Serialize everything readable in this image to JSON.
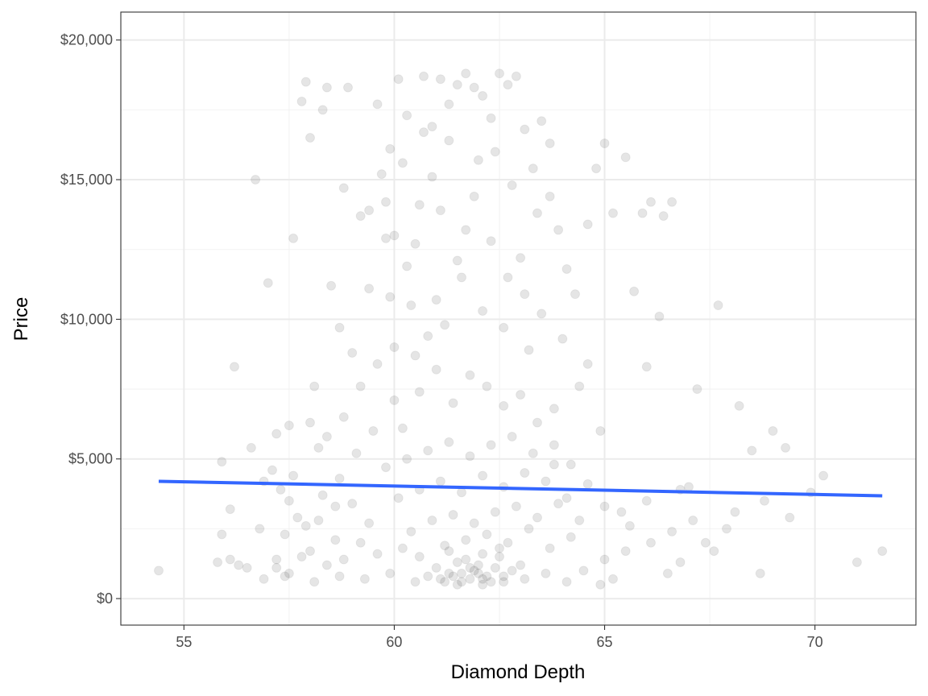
{
  "chart_data": {
    "type": "scatter",
    "title": "",
    "xlabel": "Diamond Depth",
    "ylabel": "Price",
    "xlim": [
      53.5,
      72.4
    ],
    "ylim": [
      -950,
      21000
    ],
    "x_ticks": [
      55,
      60,
      65,
      70
    ],
    "x_tick_labels": [
      "55",
      "60",
      "65",
      "70"
    ],
    "x_minor_ticks": [
      57.5,
      62.5,
      67.5
    ],
    "y_ticks": [
      0,
      5000,
      10000,
      15000,
      20000
    ],
    "y_tick_labels": [
      "$0",
      "$5,000",
      "$10,000",
      "$15,000",
      "$20,000"
    ],
    "y_minor_ticks": [
      2500,
      7500,
      12500,
      17500
    ],
    "grid": true,
    "point_color": "#000000",
    "point_alpha": 0.1,
    "points": [
      [
        54.4,
        1000
      ],
      [
        55.9,
        4900
      ],
      [
        55.9,
        2300
      ],
      [
        56.2,
        8300
      ],
      [
        56.1,
        3200
      ],
      [
        55.8,
        1300
      ],
      [
        56.1,
        1400
      ],
      [
        56.3,
        1200
      ],
      [
        56.5,
        1100
      ],
      [
        56.7,
        15000
      ],
      [
        56.6,
        5400
      ],
      [
        56.8,
        2500
      ],
      [
        56.9,
        4200
      ],
      [
        57.0,
        11300
      ],
      [
        57.1,
        4600
      ],
      [
        57.2,
        5900
      ],
      [
        57.2,
        1400
      ],
      [
        57.3,
        3900
      ],
      [
        57.4,
        800
      ],
      [
        57.5,
        6200
      ],
      [
        57.6,
        12900
      ],
      [
        57.7,
        2900
      ],
      [
        57.8,
        17800
      ],
      [
        57.9,
        18500
      ],
      [
        58.0,
        16500
      ],
      [
        58.1,
        7600
      ],
      [
        58.2,
        5400
      ],
      [
        58.3,
        17500
      ],
      [
        58.4,
        18300
      ],
      [
        58.5,
        11200
      ],
      [
        58.6,
        3300
      ],
      [
        58.7,
        9700
      ],
      [
        58.8,
        14700
      ],
      [
        58.9,
        18300
      ],
      [
        59.0,
        8800
      ],
      [
        59.2,
        13700
      ],
      [
        59.4,
        11100
      ],
      [
        59.6,
        17700
      ],
      [
        59.7,
        15200
      ],
      [
        59.8,
        14200
      ],
      [
        59.9,
        16100
      ],
      [
        60.0,
        13000
      ],
      [
        60.1,
        18600
      ],
      [
        60.3,
        17300
      ],
      [
        60.5,
        12700
      ],
      [
        60.7,
        18700
      ],
      [
        60.9,
        16900
      ],
      [
        61.1,
        18600
      ],
      [
        61.3,
        17700
      ],
      [
        61.5,
        18400
      ],
      [
        61.7,
        18800
      ],
      [
        61.9,
        18300
      ],
      [
        62.1,
        18000
      ],
      [
        62.3,
        17200
      ],
      [
        62.5,
        18800
      ],
      [
        62.7,
        18400
      ],
      [
        62.9,
        18700
      ],
      [
        63.1,
        16800
      ],
      [
        63.3,
        15400
      ],
      [
        63.5,
        17100
      ],
      [
        63.7,
        14400
      ],
      [
        63.9,
        13200
      ],
      [
        64.1,
        11800
      ],
      [
        64.3,
        10900
      ],
      [
        64.6,
        13400
      ],
      [
        64.8,
        15400
      ],
      [
        65.0,
        16300
      ],
      [
        65.2,
        13800
      ],
      [
        65.5,
        15800
      ],
      [
        65.7,
        11000
      ],
      [
        65.9,
        13800
      ],
      [
        66.1,
        14200
      ],
      [
        66.4,
        13700
      ],
      [
        66.6,
        14200
      ],
      [
        66.3,
        10100
      ],
      [
        66.0,
        8300
      ],
      [
        66.8,
        3900
      ],
      [
        67.0,
        4000
      ],
      [
        67.2,
        7500
      ],
      [
        67.4,
        2000
      ],
      [
        67.6,
        1700
      ],
      [
        67.7,
        10500
      ],
      [
        67.9,
        2500
      ],
      [
        68.2,
        6900
      ],
      [
        68.5,
        5300
      ],
      [
        68.7,
        900
      ],
      [
        68.8,
        3500
      ],
      [
        69.0,
        6000
      ],
      [
        69.3,
        5400
      ],
      [
        69.4,
        2900
      ],
      [
        71.0,
        1300
      ],
      [
        71.6,
        1700
      ],
      [
        70.2,
        4400
      ],
      [
        69.9,
        3800
      ],
      [
        68.1,
        3100
      ],
      [
        66.8,
        1300
      ],
      [
        65.4,
        3100
      ],
      [
        65.2,
        700
      ],
      [
        64.9,
        500
      ],
      [
        64.4,
        2800
      ],
      [
        64.6,
        8400
      ],
      [
        64.9,
        6000
      ],
      [
        63.8,
        6800
      ],
      [
        63.2,
        8900
      ],
      [
        62.6,
        9700
      ],
      [
        62.1,
        10300
      ],
      [
        61.6,
        11500
      ],
      [
        61.2,
        9800
      ],
      [
        60.8,
        9400
      ],
      [
        60.4,
        10500
      ],
      [
        60.0,
        9000
      ],
      [
        59.6,
        8400
      ],
      [
        59.2,
        7600
      ],
      [
        58.8,
        6500
      ],
      [
        58.4,
        5800
      ],
      [
        58.0,
        6300
      ],
      [
        57.6,
        4400
      ],
      [
        57.4,
        2300
      ],
      [
        57.8,
        1500
      ],
      [
        58.2,
        2800
      ],
      [
        58.6,
        2100
      ],
      [
        59.0,
        3400
      ],
      [
        59.4,
        2700
      ],
      [
        59.8,
        4700
      ],
      [
        60.2,
        6100
      ],
      [
        60.6,
        7400
      ],
      [
        61.0,
        8200
      ],
      [
        61.4,
        7000
      ],
      [
        61.8,
        8000
      ],
      [
        62.2,
        7600
      ],
      [
        62.6,
        6900
      ],
      [
        63.0,
        7300
      ],
      [
        63.4,
        6300
      ],
      [
        63.8,
        5500
      ],
      [
        64.2,
        4800
      ],
      [
        64.6,
        4100
      ],
      [
        65.0,
        3300
      ],
      [
        65.6,
        2600
      ],
      [
        66.0,
        3500
      ],
      [
        66.5,
        900
      ],
      [
        61.7,
        13200
      ],
      [
        61.9,
        14400
      ],
      [
        62.0,
        15700
      ],
      [
        62.3,
        12800
      ],
      [
        61.5,
        12100
      ],
      [
        61.1,
        13900
      ],
      [
        60.9,
        15100
      ],
      [
        60.6,
        14100
      ],
      [
        60.2,
        15600
      ],
      [
        59.8,
        12900
      ],
      [
        59.4,
        13900
      ],
      [
        63.0,
        12200
      ],
      [
        63.4,
        13800
      ],
      [
        63.7,
        16300
      ],
      [
        62.8,
        14800
      ],
      [
        62.4,
        16000
      ],
      [
        61.3,
        16400
      ],
      [
        60.7,
        16700
      ],
      [
        60.3,
        11900
      ],
      [
        59.9,
        10800
      ],
      [
        63.5,
        10200
      ],
      [
        64.0,
        9300
      ],
      [
        64.4,
        7600
      ],
      [
        63.1,
        10900
      ],
      [
        62.7,
        11500
      ],
      [
        61.0,
        10700
      ],
      [
        60.5,
        8700
      ],
      [
        60.0,
        7100
      ],
      [
        59.5,
        6000
      ],
      [
        59.1,
        5200
      ],
      [
        58.7,
        4300
      ],
      [
        58.3,
        3700
      ],
      [
        57.9,
        2600
      ],
      [
        57.5,
        3500
      ],
      [
        57.2,
        1100
      ],
      [
        56.9,
        700
      ],
      [
        57.5,
        900
      ],
      [
        58.1,
        600
      ],
      [
        58.7,
        800
      ],
      [
        59.3,
        700
      ],
      [
        59.9,
        900
      ],
      [
        60.5,
        600
      ],
      [
        61.1,
        700
      ],
      [
        61.6,
        600
      ],
      [
        62.1,
        700
      ],
      [
        62.6,
        800
      ],
      [
        63.1,
        700
      ],
      [
        63.6,
        900
      ],
      [
        64.1,
        600
      ],
      [
        64.5,
        1000
      ],
      [
        65.0,
        1400
      ],
      [
        65.5,
        1700
      ],
      [
        66.1,
        2000
      ],
      [
        66.6,
        2400
      ],
      [
        67.1,
        2800
      ],
      [
        60.8,
        800
      ],
      [
        61.3,
        900
      ],
      [
        61.8,
        700
      ],
      [
        62.3,
        600
      ],
      [
        62.8,
        1000
      ],
      [
        61.0,
        1100
      ],
      [
        61.5,
        1300
      ],
      [
        62.0,
        1200
      ],
      [
        62.5,
        1500
      ],
      [
        63.0,
        1200
      ],
      [
        60.6,
        1500
      ],
      [
        60.2,
        1800
      ],
      [
        61.2,
        1900
      ],
      [
        61.7,
        2100
      ],
      [
        62.2,
        2300
      ],
      [
        62.7,
        2000
      ],
      [
        63.2,
        2500
      ],
      [
        63.7,
        1800
      ],
      [
        64.2,
        2200
      ],
      [
        60.4,
        2400
      ],
      [
        60.9,
        2800
      ],
      [
        61.4,
        3000
      ],
      [
        61.9,
        2700
      ],
      [
        62.4,
        3100
      ],
      [
        62.9,
        3300
      ],
      [
        63.4,
        2900
      ],
      [
        63.9,
        3400
      ],
      [
        59.6,
        1600
      ],
      [
        59.2,
        2000
      ],
      [
        58.8,
        1400
      ],
      [
        58.4,
        1200
      ],
      [
        58.0,
        1700
      ],
      [
        60.1,
        3600
      ],
      [
        60.6,
        3900
      ],
      [
        61.1,
        4200
      ],
      [
        61.6,
        3800
      ],
      [
        62.1,
        4400
      ],
      [
        62.6,
        4000
      ],
      [
        63.1,
        4500
      ],
      [
        63.6,
        4200
      ],
      [
        64.1,
        3600
      ],
      [
        60.3,
        5000
      ],
      [
        60.8,
        5300
      ],
      [
        61.3,
        5600
      ],
      [
        61.8,
        5100
      ],
      [
        62.3,
        5500
      ],
      [
        62.8,
        5800
      ],
      [
        63.3,
        5200
      ],
      [
        63.8,
        4800
      ],
      [
        61.6,
        900
      ],
      [
        61.9,
        1000
      ],
      [
        62.2,
        800
      ],
      [
        61.4,
        800
      ],
      [
        62.0,
        900
      ],
      [
        61.8,
        1100
      ],
      [
        62.4,
        1100
      ],
      [
        61.2,
        600
      ],
      [
        62.6,
        600
      ],
      [
        61.5,
        500
      ],
      [
        62.1,
        500
      ],
      [
        61.7,
        1400
      ],
      [
        62.1,
        1600
      ],
      [
        61.3,
        1700
      ],
      [
        62.5,
        1800
      ]
    ],
    "trend_line": {
      "color": "#3366FF",
      "x": [
        54.4,
        71.6
      ],
      "y": [
        4200,
        3680
      ]
    }
  }
}
